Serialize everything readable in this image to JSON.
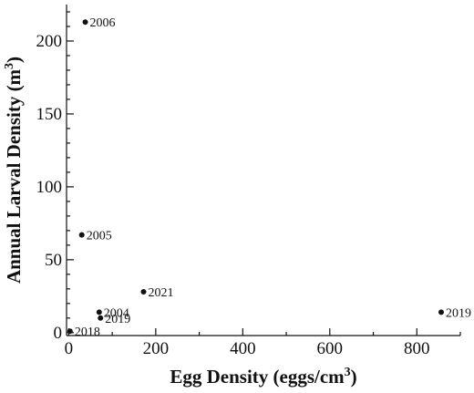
{
  "chart_data": {
    "type": "scatter",
    "title": "",
    "xlabel": "Egg Density (eggs/cm",
    "xlabel_sup": "3",
    "xlabel_end": ")",
    "ylabel": "Annual Larval Density (m",
    "ylabel_sup": "3",
    "ylabel_end": ")",
    "xlim": [
      -5,
      900
    ],
    "ylim": [
      -2,
      225
    ],
    "grid": false,
    "x_ticks": [
      0,
      200,
      400,
      600,
      800
    ],
    "y_ticks": [
      0,
      50,
      100,
      150,
      200
    ],
    "points": [
      {
        "label": "2006",
        "x": 38,
        "y": 213
      },
      {
        "label": "2005",
        "x": 30,
        "y": 67
      },
      {
        "label": "2021",
        "x": 172,
        "y": 28
      },
      {
        "label": "2004",
        "x": 70,
        "y": 14
      },
      {
        "label": "2019",
        "x": 73,
        "y": 10
      },
      {
        "label": "2018",
        "x": 3,
        "y": 1
      },
      {
        "label": "2019",
        "x": 856,
        "y": 14
      }
    ],
    "marker_color": "#111111"
  }
}
